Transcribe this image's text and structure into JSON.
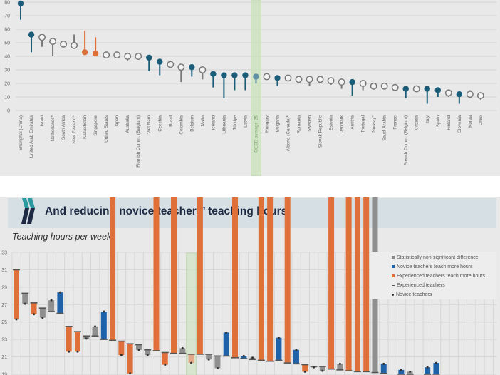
{
  "colors": {
    "teal": "#1b5c78",
    "orange": "#e0703a",
    "gray": "#8a8a8a",
    "blue": "#1f62a8",
    "oecd": "#c9e3b8",
    "oecd_bar": "#e2a98a"
  },
  "header": {
    "title": "And reducing novice teachers’ teaching hours",
    "subtitle": "Teaching hours per week"
  },
  "chart_data": [
    {
      "type": "scatter",
      "subtype": "lollipop",
      "ylim": [
        0,
        80
      ],
      "yticks": [
        0,
        10,
        20,
        30,
        40,
        50,
        60,
        70,
        80
      ],
      "grid": true,
      "highlight": "OECD average-25",
      "points": [
        {
          "label": "Shanghai (China)",
          "value": 79,
          "other": 67,
          "kind": "teal"
        },
        {
          "label": "United Arab Emirates",
          "value": 56,
          "other": 43,
          "kind": "teal"
        },
        {
          "label": "Israel",
          "value": 54,
          "other": 47,
          "kind": "open"
        },
        {
          "label": "Netherlands*",
          "value": 51,
          "other": 40,
          "kind": "open"
        },
        {
          "label": "South Africa",
          "value": 49,
          "other": null,
          "kind": "open"
        },
        {
          "label": "New Zealand*",
          "value": 48,
          "other": 56,
          "kind": "open"
        },
        {
          "label": "Kazakhstan",
          "value": 43,
          "other": 59,
          "kind": "orange"
        },
        {
          "label": "Singapore",
          "value": 42,
          "other": 54,
          "kind": "orange"
        },
        {
          "label": "United States",
          "value": 41,
          "other": null,
          "kind": "open"
        },
        {
          "label": "Japan",
          "value": 41,
          "other": null,
          "kind": "open"
        },
        {
          "label": "Australia",
          "value": 40,
          "other": 37,
          "kind": "open"
        },
        {
          "label": "Flemish Comm. (Belgium)",
          "value": 40,
          "other": null,
          "kind": "open"
        },
        {
          "label": "Viet Nam",
          "value": 39,
          "other": 29,
          "kind": "teal"
        },
        {
          "label": "Czechia",
          "value": 36,
          "other": 26,
          "kind": "teal"
        },
        {
          "label": "Brazil",
          "value": 34,
          "other": null,
          "kind": "open"
        },
        {
          "label": "Colombia",
          "value": 32,
          "other": 21,
          "kind": "open"
        },
        {
          "label": "Belgium",
          "value": 32,
          "other": 25,
          "kind": "teal"
        },
        {
          "label": "Malta",
          "value": 30,
          "other": 23,
          "kind": "open"
        },
        {
          "label": "Iceland",
          "value": 27,
          "other": 17,
          "kind": "teal"
        },
        {
          "label": "Lithuania",
          "value": 26,
          "other": 9,
          "kind": "teal"
        },
        {
          "label": "Türkiye",
          "value": 26,
          "other": 15,
          "kind": "teal"
        },
        {
          "label": "Latvia",
          "value": 26,
          "other": 15,
          "kind": "teal"
        },
        {
          "label": "OECD average-25",
          "value": 25,
          "other": 20,
          "kind": "avg"
        },
        {
          "label": "Hungary",
          "value": 25,
          "other": null,
          "kind": "open"
        },
        {
          "label": "Bulgaria",
          "value": 24,
          "other": 18,
          "kind": "teal"
        },
        {
          "label": "Alberta (Canada)*",
          "value": 24,
          "other": null,
          "kind": "open"
        },
        {
          "label": "Romania",
          "value": 23,
          "other": null,
          "kind": "open"
        },
        {
          "label": "Sweden",
          "value": 23,
          "other": 18,
          "kind": "open"
        },
        {
          "label": "Slovak Republic",
          "value": 23,
          "other": null,
          "kind": "open"
        },
        {
          "label": "Estonia",
          "value": 22,
          "other": 19,
          "kind": "open"
        },
        {
          "label": "Denmark",
          "value": 21,
          "other": 16,
          "kind": "open"
        },
        {
          "label": "Austria",
          "value": 21,
          "other": 11,
          "kind": "teal"
        },
        {
          "label": "Portugal",
          "value": 20,
          "other": 15,
          "kind": "open"
        },
        {
          "label": "Norway*",
          "value": 18,
          "other": null,
          "kind": "open"
        },
        {
          "label": "Saudi Arabia",
          "value": 18,
          "other": null,
          "kind": "open"
        },
        {
          "label": "France",
          "value": 17,
          "other": null,
          "kind": "open"
        },
        {
          "label": "French Comm. (Belgium)",
          "value": 16,
          "other": 9,
          "kind": "teal"
        },
        {
          "label": "Croatia",
          "value": 16,
          "other": null,
          "kind": "open"
        },
        {
          "label": "Italy",
          "value": 16,
          "other": 5,
          "kind": "teal"
        },
        {
          "label": "Spain",
          "value": 15,
          "other": 10,
          "kind": "teal"
        },
        {
          "label": "Finland",
          "value": 13,
          "other": 10,
          "kind": "open"
        },
        {
          "label": "Slovenia",
          "value": 12,
          "other": 5,
          "kind": "teal"
        },
        {
          "label": "Korea",
          "value": 12,
          "other": 15,
          "kind": "open"
        },
        {
          "label": "Chile",
          "value": 11,
          "other": 8,
          "kind": "open"
        }
      ]
    },
    {
      "type": "bar",
      "subtype": "range",
      "title": "Teaching hours per week",
      "ylim": [
        19,
        33
      ],
      "yticks": [
        19,
        21,
        23,
        25,
        27,
        29,
        31,
        33
      ],
      "grid": true,
      "highlight_index": 20,
      "legend": [
        "Statistically non-significant difference",
        "Novice teachers teach more hours",
        "Experienced teachers teach more hours",
        "Experienced teachers",
        "Novice teachers"
      ],
      "legend_position": "top-right",
      "bars": [
        {
          "experienced": 31.0,
          "novice": 25.3,
          "kind": "orange"
        },
        {
          "experienced": 28.3,
          "novice": 27.1,
          "kind": "gray"
        },
        {
          "experienced": 27.2,
          "novice": 25.9,
          "kind": "orange"
        },
        {
          "experienced": 26.6,
          "novice": 25.5,
          "kind": "gray"
        },
        {
          "experienced": 26.2,
          "novice": 27.5,
          "kind": "gray"
        },
        {
          "experienced": 26.0,
          "novice": 28.4,
          "kind": "blue"
        },
        {
          "experienced": 24.5,
          "novice": 21.6,
          "kind": "orange"
        },
        {
          "experienced": 23.9,
          "novice": 21.6,
          "kind": "orange"
        },
        {
          "experienced": 23.4,
          "novice": 23.1,
          "kind": "gray"
        },
        {
          "experienced": 23.4,
          "novice": 24.5,
          "kind": "gray"
        },
        {
          "experienced": 23.0,
          "novice": 26.2,
          "kind": "blue"
        },
        {
          "experienced": 22.9,
          "novice": null,
          "kind": "orange"
        },
        {
          "experienced": 22.8,
          "novice": 21.2,
          "kind": "orange"
        },
        {
          "experienced": 22.5,
          "novice": 19.1,
          "kind": "orange"
        },
        {
          "experienced": 22.4,
          "novice": 21.8,
          "kind": "gray"
        },
        {
          "experienced": 21.8,
          "novice": 21.2,
          "kind": "gray"
        },
        {
          "experienced": 21.7,
          "novice": null,
          "kind": "orange"
        },
        {
          "experienced": 21.5,
          "novice": 20.1,
          "kind": "orange"
        },
        {
          "experienced": 21.4,
          "novice": null,
          "kind": "orange"
        },
        {
          "experienced": 21.4,
          "novice": 22.0,
          "kind": "gray"
        },
        {
          "experienced": 21.3,
          "novice": 20.3,
          "kind": "avg"
        },
        {
          "experienced": 21.3,
          "novice": null,
          "kind": "orange"
        },
        {
          "experienced": 21.3,
          "novice": 20.7,
          "kind": "gray"
        },
        {
          "experienced": 21.1,
          "novice": 19.7,
          "kind": "gray"
        },
        {
          "experienced": 21.1,
          "novice": 23.8,
          "kind": "blue"
        },
        {
          "experienced": 20.9,
          "novice": null,
          "kind": "orange"
        },
        {
          "experienced": 20.8,
          "novice": 21.1,
          "kind": "blue"
        },
        {
          "experienced": 20.7,
          "novice": 20.9,
          "kind": "gray"
        },
        {
          "experienced": 20.6,
          "novice": null,
          "kind": "orange"
        },
        {
          "experienced": 20.5,
          "novice": null,
          "kind": "orange"
        },
        {
          "experienced": 20.6,
          "novice": 23.2,
          "kind": "blue"
        },
        {
          "experienced": 20.3,
          "novice": null,
          "kind": "orange"
        },
        {
          "experienced": 20.2,
          "novice": 21.8,
          "kind": "blue"
        },
        {
          "experienced": 20.1,
          "novice": 19.3,
          "kind": "orange"
        },
        {
          "experienced": 19.9,
          "novice": 19.8,
          "kind": "gray"
        },
        {
          "experienced": 19.9,
          "novice": 19.4,
          "kind": "gray"
        },
        {
          "experienced": 19.6,
          "novice": null,
          "kind": "orange"
        },
        {
          "experienced": 19.5,
          "novice": 20.2,
          "kind": "gray"
        },
        {
          "experienced": 19.4,
          "novice": null,
          "kind": "orange"
        },
        {
          "experienced": 19.3,
          "novice": null,
          "kind": "orange"
        },
        {
          "experienced": 19.3,
          "novice": null,
          "kind": "orange"
        },
        {
          "experienced": 19.2,
          "novice": null,
          "kind": "gray"
        },
        {
          "experienced": 19.1,
          "novice": 20.2,
          "kind": "blue"
        },
        {
          "experienced": null,
          "novice": null,
          "kind": "gray"
        },
        {
          "experienced": 19.0,
          "novice": 19.5,
          "kind": "blue"
        },
        {
          "experienced": 19.0,
          "novice": 19.3,
          "kind": "gray"
        },
        {
          "experienced": null,
          "novice": null,
          "kind": "gray"
        },
        {
          "experienced": 19.0,
          "novice": 19.8,
          "kind": "blue"
        },
        {
          "experienced": 19.0,
          "novice": 20.3,
          "kind": "blue"
        }
      ]
    }
  ]
}
